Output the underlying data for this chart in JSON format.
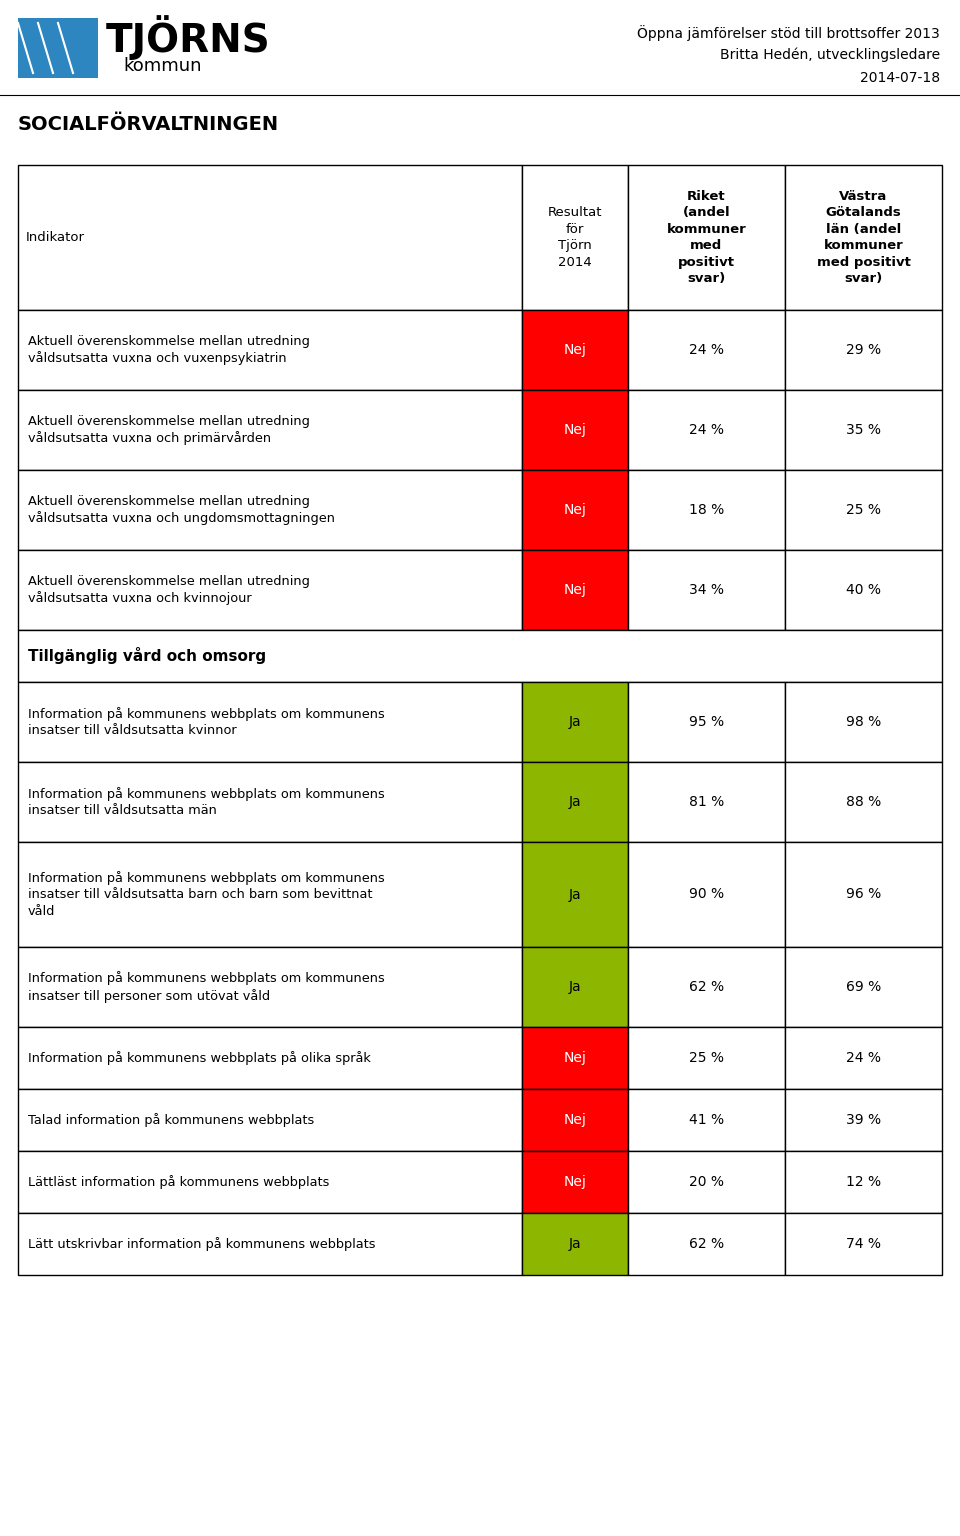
{
  "header_right_line1": "Öppna jämförelser stöd till brottsoffer 2013",
  "header_right_line2": "Britta Hedén, utvecklingsledare",
  "header_right_line3": "2014-07-18",
  "header_left": "SOCIALFÖRVALTNINGEN",
  "col_headers": [
    "Indikator",
    "Resultat\nför\nTjörn\n2014",
    "Riket\n(andel\nkommuner\nmed\npositivt\nsvar)",
    "Västra\nGötalands\nlän (andel\nkommuner\nmed positivt\nsvar)"
  ],
  "col_header_bold": [
    false,
    false,
    true,
    true
  ],
  "rows": [
    {
      "indicator": "Aktuell överenskommelse mellan utredning\nvåldsutsatta vuxna och vuxenpsykiatrin",
      "result": "Nej",
      "riket": "24 %",
      "vastra": "29 %",
      "result_color": "#FF0000",
      "result_text_color": "#FFFFFF"
    },
    {
      "indicator": "Aktuell överenskommelse mellan utredning\nvåldsutsatta vuxna och primärvården",
      "result": "Nej",
      "riket": "24 %",
      "vastra": "35 %",
      "result_color": "#FF0000",
      "result_text_color": "#FFFFFF"
    },
    {
      "indicator": "Aktuell överenskommelse mellan utredning\nvåldsutsatta vuxna och ungdomsmottagningen",
      "result": "Nej",
      "riket": "18 %",
      "vastra": "25 %",
      "result_color": "#FF0000",
      "result_text_color": "#FFFFFF"
    },
    {
      "indicator": "Aktuell överenskommelse mellan utredning\nvåldsutsatta vuxna och kvinnojour",
      "result": "Nej",
      "riket": "34 %",
      "vastra": "40 %",
      "result_color": "#FF0000",
      "result_text_color": "#FFFFFF"
    },
    {
      "indicator": "Tillgänglig vård och omsorg",
      "result": "",
      "riket": "",
      "vastra": "",
      "result_color": "#FFFFFF",
      "result_text_color": "#000000",
      "is_section": true
    },
    {
      "indicator": "Information på kommunens webbplats om kommunens\ninsatser till våldsutsatta kvinnor",
      "result": "Ja",
      "riket": "95 %",
      "vastra": "98 %",
      "result_color": "#8DB600",
      "result_text_color": "#000000"
    },
    {
      "indicator": "Information på kommunens webbplats om kommunens\ninsatser till våldsutsatta män",
      "result": "Ja",
      "riket": "81 %",
      "vastra": "88 %",
      "result_color": "#8DB600",
      "result_text_color": "#000000"
    },
    {
      "indicator": "Information på kommunens webbplats om kommunens\ninsatser till våldsutsatta barn och barn som bevittnat\nvåld",
      "result": "Ja",
      "riket": "90 %",
      "vastra": "96 %",
      "result_color": "#8DB600",
      "result_text_color": "#000000"
    },
    {
      "indicator": "Information på kommunens webbplats om kommunens\ninsatser till personer som utövat våld",
      "result": "Ja",
      "riket": "62 %",
      "vastra": "69 %",
      "result_color": "#8DB600",
      "result_text_color": "#000000"
    },
    {
      "indicator": "Information på kommunens webbplats på olika språk",
      "result": "Nej",
      "riket": "25 %",
      "vastra": "24 %",
      "result_color": "#FF0000",
      "result_text_color": "#FFFFFF"
    },
    {
      "indicator": "Talad information på kommunens webbplats",
      "result": "Nej",
      "riket": "41 %",
      "vastra": "39 %",
      "result_color": "#FF0000",
      "result_text_color": "#FFFFFF"
    },
    {
      "indicator": "Lättläst information på kommunens webbplats",
      "result": "Nej",
      "riket": "20 %",
      "vastra": "12 %",
      "result_color": "#FF0000",
      "result_text_color": "#FFFFFF"
    },
    {
      "indicator": "Lätt utskrivbar information på kommunens webbplats",
      "result": "Ja",
      "riket": "62 %",
      "vastra": "74 %",
      "result_color": "#8DB600",
      "result_text_color": "#000000"
    }
  ],
  "logo_color": "#2E86C1",
  "bg_color": "#FFFFFF"
}
